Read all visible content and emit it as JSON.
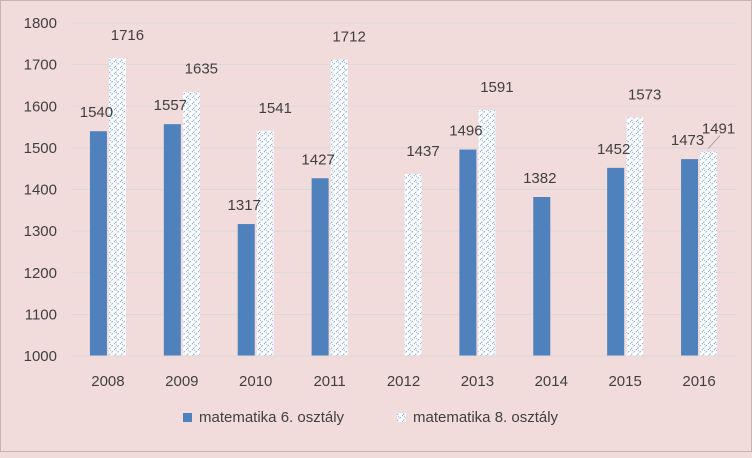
{
  "chart_data": {
    "type": "bar",
    "categories": [
      "2008",
      "2009",
      "2010",
      "2011",
      "2012",
      "2013",
      "2014",
      "2015",
      "2016"
    ],
    "series": [
      {
        "name": "matematika 6. osztály",
        "values": [
          1540,
          1557,
          1317,
          1427,
          null,
          1496,
          1382,
          1452,
          1473
        ],
        "labels": [
          "1540",
          "1557",
          "1317",
          "1427",
          "",
          "1496",
          "1382",
          "1452",
          "1473"
        ],
        "color": "#4f81bd"
      },
      {
        "name": "matematika 8. osztály",
        "values": [
          1716,
          1635,
          1541,
          1712,
          1437,
          1591,
          null,
          1573,
          1491
        ],
        "labels": [
          "1716",
          "1635",
          "1541",
          "1712",
          "1437",
          "1591",
          "",
          "1573",
          "1491"
        ],
        "color": "#ffffff",
        "pattern_color": "#8eb4e3"
      }
    ],
    "ylim": [
      1000,
      1800
    ],
    "yticks": [
      "1000",
      "1100",
      "1200",
      "1300",
      "1400",
      "1500",
      "1600",
      "1700",
      "1800"
    ],
    "grid": true,
    "legend_position": "bottom",
    "xlabel": "",
    "ylabel": "",
    "title": ""
  }
}
